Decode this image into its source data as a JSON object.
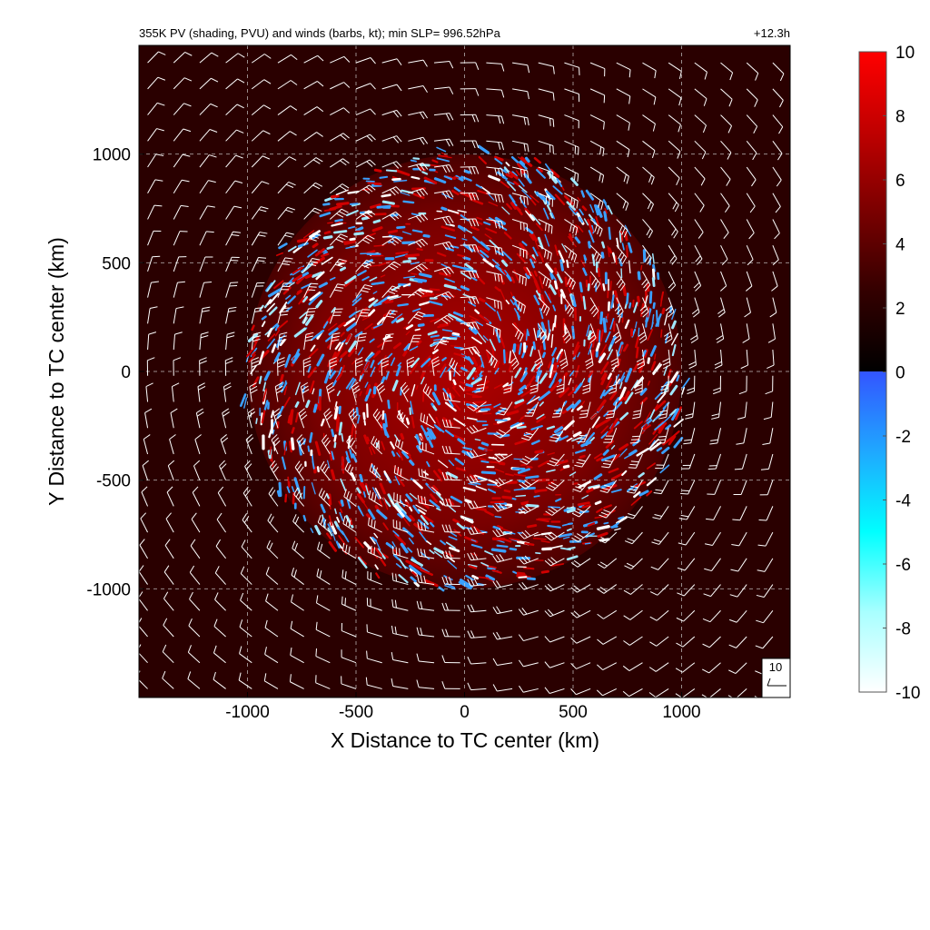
{
  "chart_data": {
    "type": "heatmap",
    "title": "355K PV (shading, PVU) and winds (barbs, kt); min SLP= 996.52hPa",
    "time_label": "+12.3h",
    "xlabel": "X Distance to TC center (km)",
    "ylabel": "Y Distance to TC center (km)",
    "xlim": [
      -1500,
      1500
    ],
    "ylim": [
      -1500,
      1500
    ],
    "x_ticks": [
      -1000,
      -500,
      0,
      500,
      1000
    ],
    "y_ticks": [
      -1000,
      -500,
      0,
      500,
      1000
    ],
    "x_tick_labels": [
      "-1000",
      "-500",
      "0",
      "500",
      "1000"
    ],
    "y_tick_labels": [
      "-1000",
      "-500",
      "0",
      "500",
      "1000"
    ],
    "grid": true,
    "shaded_field": {
      "variable": "PV",
      "units": "PVU",
      "feature": "cyclonic spiral region of mixed positive/negative PV",
      "approx_radius_km": 1000,
      "background_value": 1
    },
    "colorbar": {
      "range": [
        -10,
        10
      ],
      "ticks": [
        -10,
        -8,
        -6,
        -4,
        -2,
        0,
        2,
        4,
        6,
        8,
        10
      ],
      "tick_labels": [
        "-10",
        "-8",
        "-6",
        "-4",
        "-2",
        "0",
        "2",
        "4",
        "6",
        "8",
        "10"
      ],
      "placement": "right",
      "colors_positive": [
        "#000000",
        "#330000",
        "#7a0000",
        "#c00000",
        "#ff0000"
      ],
      "colors_negative": [
        "#ffffff",
        "#a8ffff",
        "#00ffff",
        "#1fa8ff",
        "#3355ff"
      ]
    },
    "wind_barbs": {
      "units": "kt",
      "flow": "cyclonic",
      "reference_label": "10",
      "reference_location": "bottom-right"
    }
  },
  "colors": {
    "background_field": "#2a0000",
    "pv_positive": "#d00000",
    "pv_negative": "#3aa0ff",
    "grid": "#c8c8c8",
    "barbs": "#ffffff"
  }
}
